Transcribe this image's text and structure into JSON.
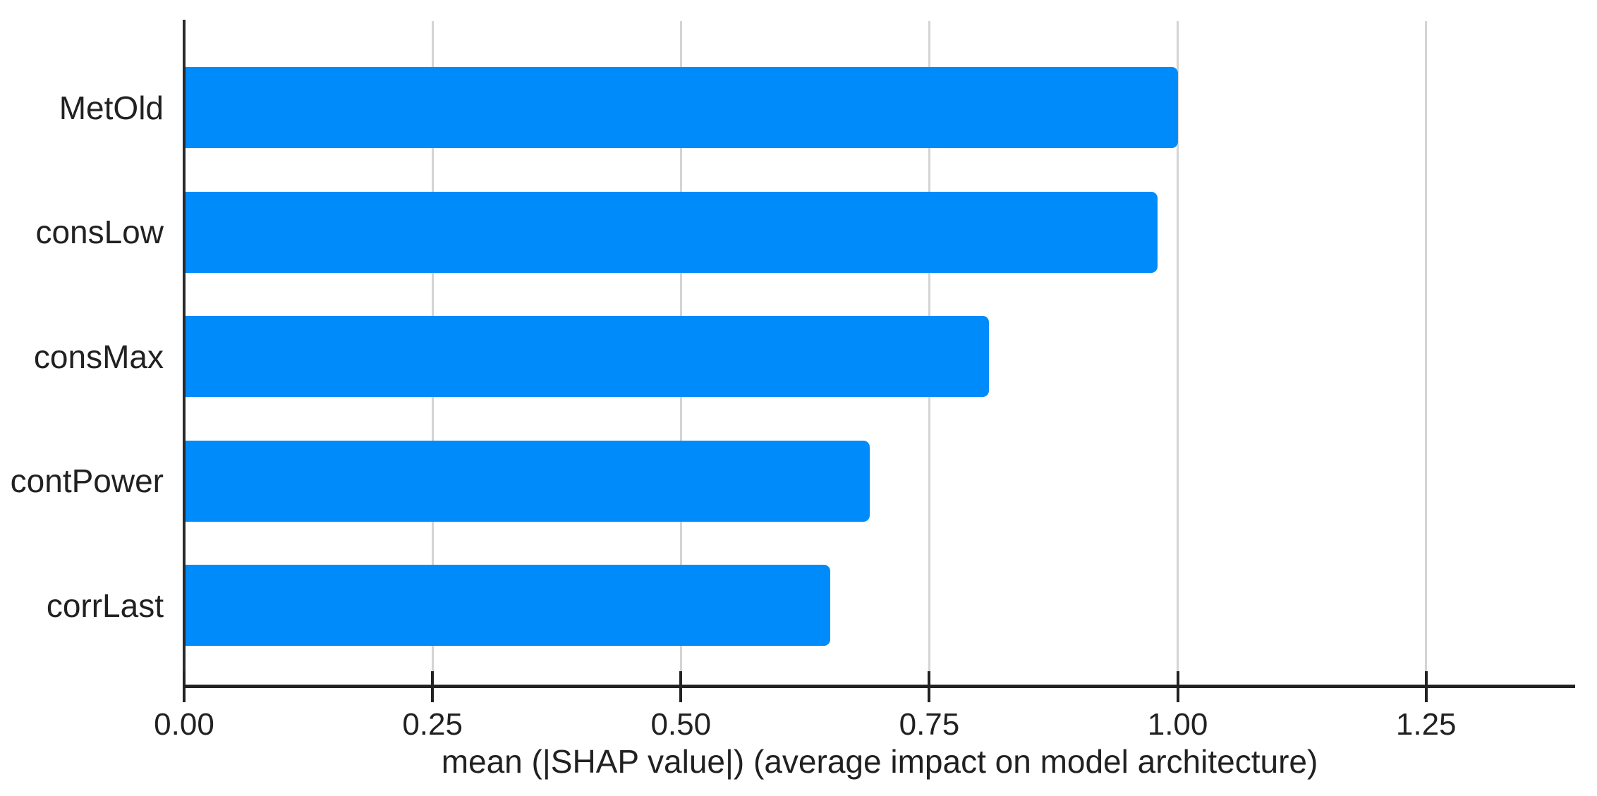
{
  "chart_data": {
    "type": "bar",
    "orientation": "horizontal",
    "title": "",
    "xlabel": "mean (|SHAP value|) (average impact on model architecture)",
    "ylabel": "",
    "categories": [
      "MetOld",
      "consLow",
      "consMax",
      "contPower",
      "corrLast"
    ],
    "values": [
      1.0,
      0.98,
      0.81,
      0.69,
      0.65
    ],
    "xlim": [
      0,
      1.4
    ],
    "xticks": [
      {
        "value": 0.0,
        "label": "0.00"
      },
      {
        "value": 0.25,
        "label": "0.25"
      },
      {
        "value": 0.5,
        "label": "0.50"
      },
      {
        "value": 0.75,
        "label": "0.75"
      },
      {
        "value": 1.0,
        "label": "1.00"
      },
      {
        "value": 1.25,
        "label": "1.25"
      }
    ],
    "grid": "vertical-only",
    "legend": "none",
    "colors": {
      "bar": "#008bfb",
      "gridline": "#d4d4d4",
      "axis": "#222222",
      "text": "#212121",
      "background": "#ffffff"
    }
  }
}
